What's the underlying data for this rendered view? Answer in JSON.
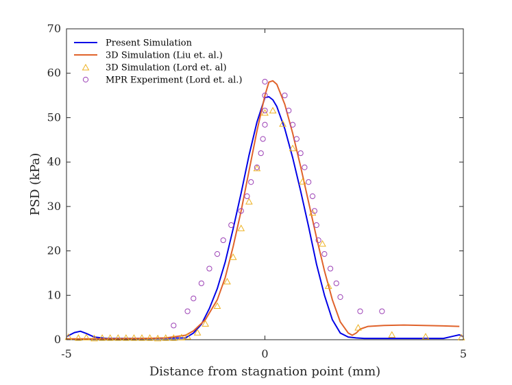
{
  "chart_data": {
    "type": "line",
    "title": "",
    "xlabel": "Distance from stagnation point (mm)",
    "ylabel": "PSD (kPa)",
    "xlim": [
      -5,
      5
    ],
    "ylim": [
      0,
      70
    ],
    "xticks": [
      -5,
      0,
      5
    ],
    "yticks": [
      0,
      10,
      20,
      30,
      40,
      50,
      60,
      70
    ],
    "grid": false,
    "legend_position": "top-left",
    "series": [
      {
        "name": "Present Simulation",
        "style": "line",
        "color": "#0000e6",
        "x": [
          -5,
          -4.8,
          -4.65,
          -4.5,
          -4.3,
          -4.0,
          -3.0,
          -2.0,
          -1.8,
          -1.6,
          -1.4,
          -1.2,
          -1.0,
          -0.8,
          -0.6,
          -0.4,
          -0.2,
          0.0,
          0.1,
          0.2,
          0.3,
          0.5,
          0.7,
          0.9,
          1.1,
          1.3,
          1.5,
          1.7,
          1.9,
          2.1,
          2.3,
          2.5,
          3.0,
          4.0,
          4.5,
          4.75,
          4.9,
          5.0
        ],
        "y": [
          0.7,
          1.6,
          1.9,
          1.4,
          0.6,
          0.3,
          0.3,
          0.4,
          1.5,
          3.5,
          7,
          11.5,
          17.5,
          25,
          33,
          41.5,
          49,
          54.5,
          54.7,
          54,
          52.5,
          47.5,
          41,
          33.5,
          25.5,
          17,
          10,
          4.5,
          1.5,
          0.6,
          0.4,
          0.3,
          0.3,
          0.3,
          0.3,
          0.8,
          1.1,
          0.7
        ]
      },
      {
        "name": "3D Simulation (Liu et. al.)",
        "style": "line",
        "color": "#e0622a",
        "x": [
          -5,
          -4.0,
          -3.0,
          -2.5,
          -2.0,
          -1.8,
          -1.5,
          -1.2,
          -1.0,
          -0.8,
          -0.6,
          -0.4,
          -0.2,
          0.0,
          0.1,
          0.2,
          0.3,
          0.5,
          0.7,
          0.9,
          1.1,
          1.3,
          1.5,
          1.7,
          1.9,
          2.1,
          2.2,
          2.3,
          2.4,
          2.6,
          3.0,
          3.5,
          4.0,
          4.5,
          4.9
        ],
        "y": [
          0.2,
          0.2,
          0.3,
          0.4,
          1.0,
          2.0,
          4.5,
          9,
          14,
          21,
          29,
          38,
          47,
          55,
          58,
          58.3,
          57.5,
          53,
          46.5,
          39,
          31,
          23,
          15.5,
          9,
          4,
          1.5,
          1.0,
          1.5,
          2.4,
          3.0,
          3.2,
          3.3,
          3.2,
          3.1,
          3.0
        ]
      },
      {
        "name": "3D Simulation (Lord et. al)",
        "style": "triangle",
        "color": "#edb120",
        "x": [
          -4.95,
          -4.7,
          -4.5,
          -4.3,
          -4.1,
          -3.9,
          -3.7,
          -3.5,
          -3.3,
          -3.1,
          -2.9,
          -2.7,
          -2.5,
          -2.3,
          -2.1,
          -1.95,
          -1.7,
          -1.5,
          -1.2,
          -0.95,
          -0.8,
          -0.6,
          -0.4,
          -0.2,
          0.0,
          0.2,
          0.45,
          0.7,
          0.95,
          1.2,
          1.45,
          1.6,
          2.35,
          3.2,
          4.05,
          4.95
        ],
        "y": [
          0.5,
          0.3,
          0.4,
          0.2,
          0.3,
          0.3,
          0.3,
          0.3,
          0.3,
          0.3,
          0.3,
          0.2,
          0.3,
          0.3,
          0.4,
          0.6,
          1.5,
          3.5,
          7.5,
          13,
          18.5,
          25,
          31,
          38.5,
          51,
          51.5,
          48.5,
          43,
          35.5,
          28.5,
          21.5,
          12,
          2.6,
          1.0,
          0.6,
          0.4
        ]
      },
      {
        "name": "MPR Experiment (Lord et. al.)",
        "style": "circle",
        "color": "#9b3fb5",
        "x": [
          -2.3,
          -1.95,
          -1.8,
          -1.6,
          -1.4,
          -1.2,
          -1.05,
          -0.85,
          -0.6,
          -0.45,
          -0.35,
          -0.2,
          -0.1,
          -0.05,
          0.0,
          0.0,
          0.0,
          0.0,
          0.5,
          0.6,
          0.7,
          0.8,
          0.9,
          1.0,
          1.1,
          1.2,
          1.25,
          1.3,
          1.35,
          1.5,
          1.65,
          1.8,
          1.9,
          2.4,
          2.95
        ],
        "y": [
          3.2,
          6.4,
          9.3,
          12.7,
          16.0,
          19.3,
          22.4,
          25.8,
          29.0,
          32.3,
          35.5,
          38.8,
          42.0,
          45.2,
          48.4,
          51.6,
          55.0,
          58.1,
          55.0,
          51.6,
          48.4,
          45.2,
          42.0,
          38.8,
          35.5,
          32.3,
          29.0,
          25.8,
          22.4,
          19.3,
          16.0,
          12.7,
          9.6,
          6.4,
          6.4
        ]
      }
    ]
  }
}
